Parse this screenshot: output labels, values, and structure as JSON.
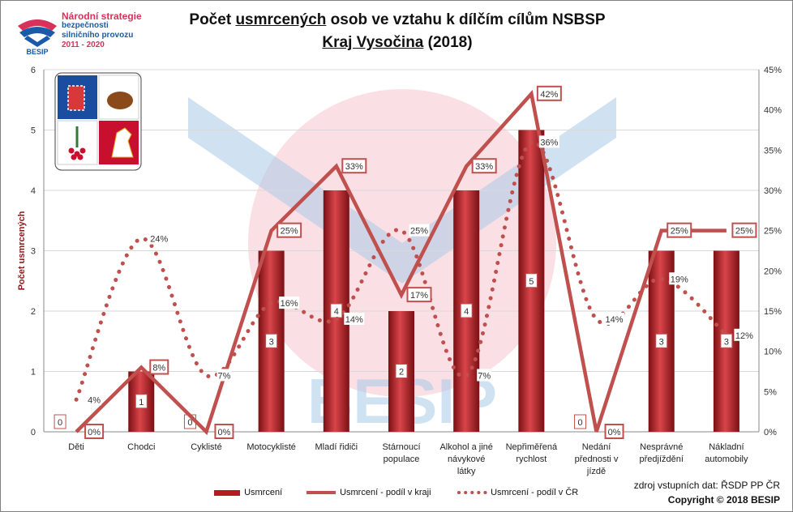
{
  "logo": {
    "lines": [
      "Národní strategie",
      "bezpečnosti",
      "silničního provozu",
      "2011 - 2020"
    ],
    "brand": "BESIP"
  },
  "title": {
    "part1": "Počet ",
    "underlined": "usmrcených",
    "part2": " osob ve vztahu k dílčím cílům NSBSP",
    "line2_underlined": "Kraj Vysočina",
    "line2_rest": " (2018)"
  },
  "watermark": "BESIP",
  "colors": {
    "bar": "#b01e23",
    "bar_light": "#d9454a",
    "line": "#c0504d",
    "dots": "#c0504d",
    "label_border": "#c0504d",
    "grid": "#d9d9d9",
    "watermark_blue": "#a9cbe8",
    "watermark_pink": "#f4b9c6"
  },
  "chart_data": {
    "type": "bar",
    "categories": [
      "Děti",
      "Chodci",
      "Cyklisté",
      "Motocyklisté",
      "Mladí řidiči",
      "Stárnoucí\npopulace",
      "Alkohol a jiné\nnávykové\nlátky",
      "Nepřiměřená\nrychlost",
      "Nedání\npřednosti v\njízdě",
      "Nesprávné\npředjíždění",
      "Nákladní\nautomobily"
    ],
    "ylabel": "Počet usmrcených",
    "ylim": [
      0,
      6
    ],
    "yticks": [
      "0",
      "1",
      "2",
      "3",
      "4",
      "5",
      "6"
    ],
    "y2lim": [
      0,
      45
    ],
    "y2ticks": [
      "0%",
      "5%",
      "10%",
      "15%",
      "20%",
      "25%",
      "30%",
      "35%",
      "40%",
      "45%"
    ],
    "grid": true,
    "legend_position": "bottom",
    "series": [
      {
        "name": "Usmrcení",
        "type": "bar",
        "values": [
          0,
          1,
          0,
          3,
          4,
          2,
          4,
          5,
          0,
          3,
          3
        ],
        "labels": [
          "0",
          "1",
          "0",
          "3",
          "4",
          "2",
          "4",
          "5",
          "0",
          "3",
          "3"
        ]
      },
      {
        "name": "Usmrcení - podíl v kraji",
        "type": "line",
        "axis": "right",
        "values": [
          0,
          8,
          0,
          25,
          33,
          17,
          33,
          42,
          0,
          25,
          25
        ],
        "labels": [
          "0%",
          "8%",
          "0%",
          "25%",
          "33%",
          "17%",
          "33%",
          "42%",
          "0%",
          "25%",
          "25%"
        ]
      },
      {
        "name": "Usmrcení - podíl v ČR",
        "type": "dotted-line",
        "axis": "right",
        "values": [
          4,
          24,
          7,
          16,
          14,
          25,
          7,
          36,
          14,
          19,
          12
        ],
        "labels": [
          "4%",
          "24%",
          "7%",
          "16%",
          "14%",
          "25%",
          "7%",
          "36%",
          "14%",
          "19%",
          "12%"
        ]
      }
    ]
  },
  "footer": {
    "source": "zdroj vstupních dat: ŘSDP PP ČR",
    "copyright": "Copyright © 2018  BESIP"
  }
}
